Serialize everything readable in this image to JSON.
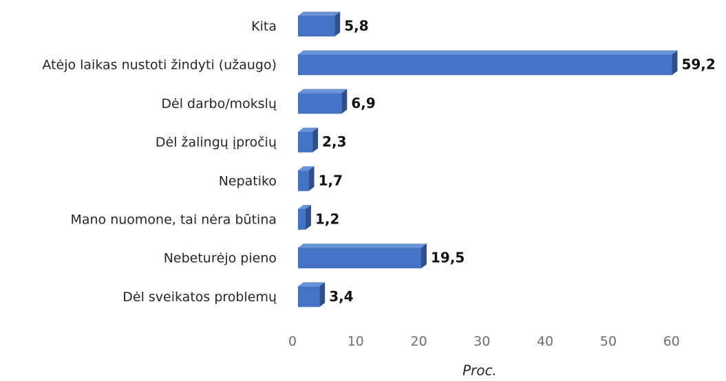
{
  "chart_data": {
    "type": "bar",
    "orientation": "horizontal",
    "categories": [
      "Kita",
      "Atėjo laikas nustoti žindyti (užaugo)",
      "Dėl darbo/mokslų",
      "Dėl žalingų įpročių",
      "Nepatiko",
      "Mano nuomone, tai nėra būtina",
      "Nebeturėjo pieno",
      "Dėl sveikatos problemų"
    ],
    "values": [
      5.8,
      59.2,
      6.9,
      2.3,
      1.7,
      1.2,
      19.5,
      3.4
    ],
    "value_labels": [
      "5,8",
      "59,2",
      "6,9",
      "2,3",
      "1,7",
      "1,2",
      "19,5",
      "3,4"
    ],
    "color": "#4472c4",
    "xlim": [
      0,
      60
    ],
    "xticks": [
      0,
      10,
      20,
      30,
      40,
      50,
      60
    ],
    "x_label": "Proc.",
    "grid": false
  }
}
